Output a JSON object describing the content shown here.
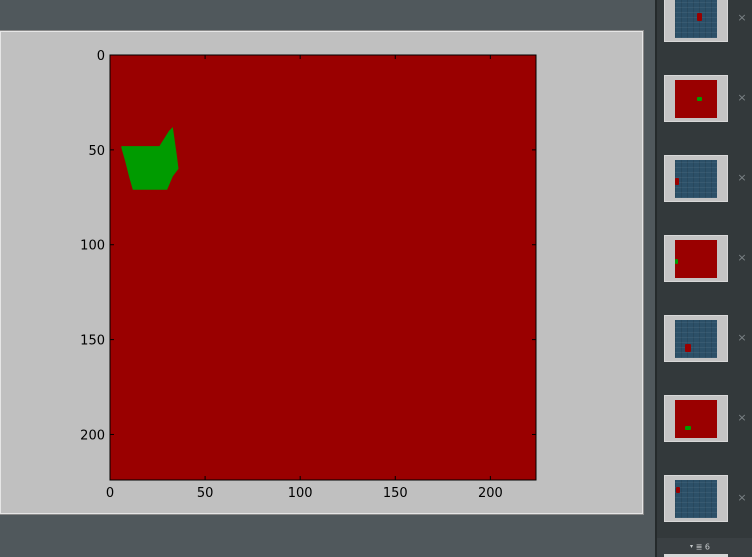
{
  "main_figure": {
    "chart_data": {
      "type": "heatmap",
      "title": "",
      "xlabel": "",
      "ylabel": "",
      "x_ticks": [
        "0",
        "50",
        "100",
        "150",
        "200"
      ],
      "y_ticks": [
        "0",
        "50",
        "100",
        "150",
        "200"
      ],
      "xlim": [
        0,
        224
      ],
      "ylim": [
        224,
        0
      ],
      "grid": false,
      "background_color": "#9a0000",
      "region_color": "#009b00",
      "region": {
        "label": "",
        "polygon": [
          [
            6,
            48
          ],
          [
            26,
            48
          ],
          [
            31,
            40
          ],
          [
            33,
            38
          ],
          [
            35,
            52
          ],
          [
            36,
            60
          ],
          [
            33,
            64
          ],
          [
            30,
            71
          ],
          [
            12,
            71
          ],
          [
            10,
            64
          ],
          [
            8,
            56
          ],
          [
            6,
            49
          ]
        ]
      }
    }
  },
  "sidebar": {
    "thumbnails": [
      {
        "style": "blue",
        "mark_color": "#9a0000"
      },
      {
        "style": "red",
        "mark_color": "#009b00"
      },
      {
        "style": "blue",
        "mark_color": "#9a0000"
      },
      {
        "style": "red",
        "mark_color": "#009b00"
      },
      {
        "style": "blue",
        "mark_color": "#9a0000"
      },
      {
        "style": "red",
        "mark_color": "#009b00"
      },
      {
        "style": "blue",
        "mark_color": "#9a0000"
      }
    ],
    "close_icon": "×",
    "footer": {
      "icon": "menu-icon",
      "arrow": "▾",
      "hamburger": "≣",
      "count": "6"
    }
  },
  "colors": {
    "panel_bg": "#c0c0c0",
    "window_bg": "#50585c",
    "sidebar_bg": "#33393b"
  }
}
